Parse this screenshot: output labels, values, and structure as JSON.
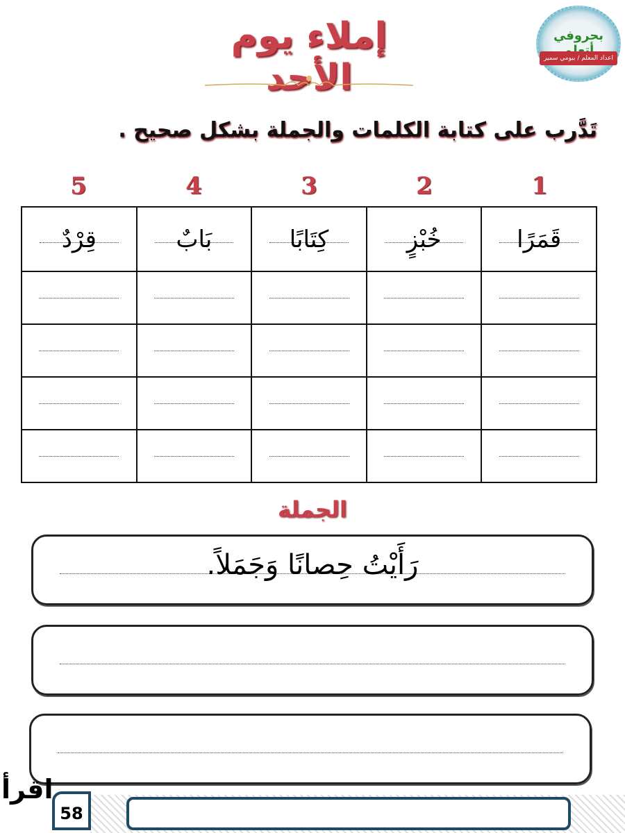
{
  "header": {
    "title": "إملاء يوم الأحد",
    "logo_text": "بحروفي أتعلم",
    "logo_credit": "اعداد المعلم / بيومي سمير"
  },
  "instruction": "تَدَّرب على كتابة الكلمات والجملة بشكل صحيح .",
  "words": {
    "numbers": [
      "1",
      "2",
      "3",
      "4",
      "5"
    ],
    "items": [
      "قَمَرًا",
      "خُبْزٍ",
      "كِتَابًا",
      "بَابٌ",
      "قِرْدٌ"
    ]
  },
  "sentence": {
    "label": "الجملة",
    "text": "رَأَيْتُ حِصانًا وَجَمَلاً."
  },
  "footer": {
    "page_number": "58",
    "logo_text": "اقرأ"
  },
  "colors": {
    "accent": "#c8414a",
    "frame": "#1e4a66"
  }
}
